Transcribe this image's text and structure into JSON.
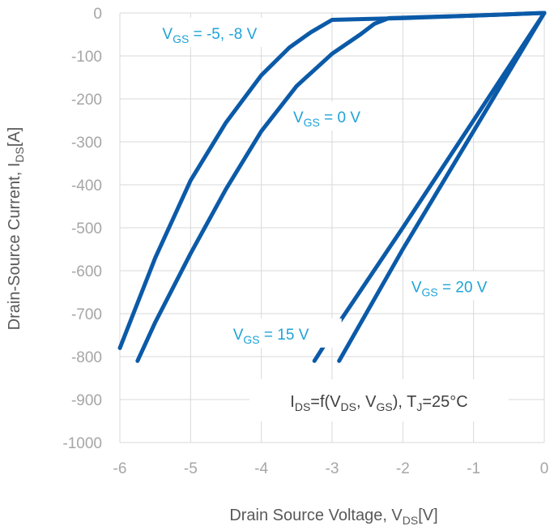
{
  "chart_data": {
    "type": "line",
    "xlabel": {
      "main": "Drain Source Voltage, V",
      "sub": "DS",
      "tail": "[V]"
    },
    "ylabel": {
      "main": "Drain-Source Current, I",
      "sub": "DS",
      "tail": "[A]"
    },
    "xlim": [
      -6,
      0
    ],
    "ylim": [
      -1000,
      0
    ],
    "xticks": [
      -6,
      -5,
      -4,
      -3,
      -2,
      -1,
      0
    ],
    "yticks": [
      0,
      -100,
      -200,
      -300,
      -400,
      -500,
      -600,
      -700,
      -800,
      -900,
      -1000
    ],
    "grid": true,
    "colors": {
      "line": "#0b5aa8",
      "label": "#1fa3d8",
      "tick": "#a6a6a6",
      "title": "#595959",
      "grid": "#d9d9d9"
    },
    "series": [
      {
        "label": {
          "pre": "V",
          "sub": "GS",
          "post": " = -5, -8 V"
        },
        "x": [
          0,
          -1,
          -2,
          -2.5,
          -3.0,
          -3.3,
          -3.6,
          -4.0,
          -4.5,
          -5.0,
          -5.5,
          -6.0
        ],
        "y": [
          0,
          -6,
          -12,
          -14,
          -16,
          -45,
          -80,
          -145,
          -255,
          -390,
          -570,
          -780
        ]
      },
      {
        "label": {
          "pre": "V",
          "sub": "GS",
          "post": " = 0 V"
        },
        "x": [
          0,
          -1,
          -2.2,
          -2.4,
          -2.6,
          -3.0,
          -3.5,
          -4.0,
          -4.5,
          -5.0,
          -5.5,
          -5.75
        ],
        "y": [
          0,
          -6,
          -12,
          -25,
          -50,
          -95,
          -170,
          -275,
          -410,
          -560,
          -720,
          -810
        ]
      },
      {
        "label": {
          "pre": "V",
          "sub": "GS",
          "post": " = 15 V"
        },
        "x": [
          0,
          -1.0,
          -2.0,
          -3.0,
          -3.25
        ],
        "y": [
          0,
          -250,
          -500,
          -745,
          -810
        ]
      },
      {
        "label": {
          "pre": "V",
          "sub": "GS",
          "post": " = 20 V"
        },
        "x": [
          0,
          -1.0,
          -2.0,
          -2.9
        ],
        "y": [
          0,
          -275,
          -550,
          -810
        ]
      }
    ],
    "annotation": {
      "parts": [
        {
          "t": "I",
          "sub": false
        },
        {
          "t": "DS",
          "sub": true
        },
        {
          "t": "=f(V",
          "sub": false
        },
        {
          "t": "DS",
          "sub": true
        },
        {
          "t": ", V",
          "sub": false
        },
        {
          "t": "GS",
          "sub": true
        },
        {
          "t": "), T",
          "sub": false
        },
        {
          "t": "J",
          "sub": true
        },
        {
          "t": "=25°C",
          "sub": false
        }
      ]
    }
  }
}
